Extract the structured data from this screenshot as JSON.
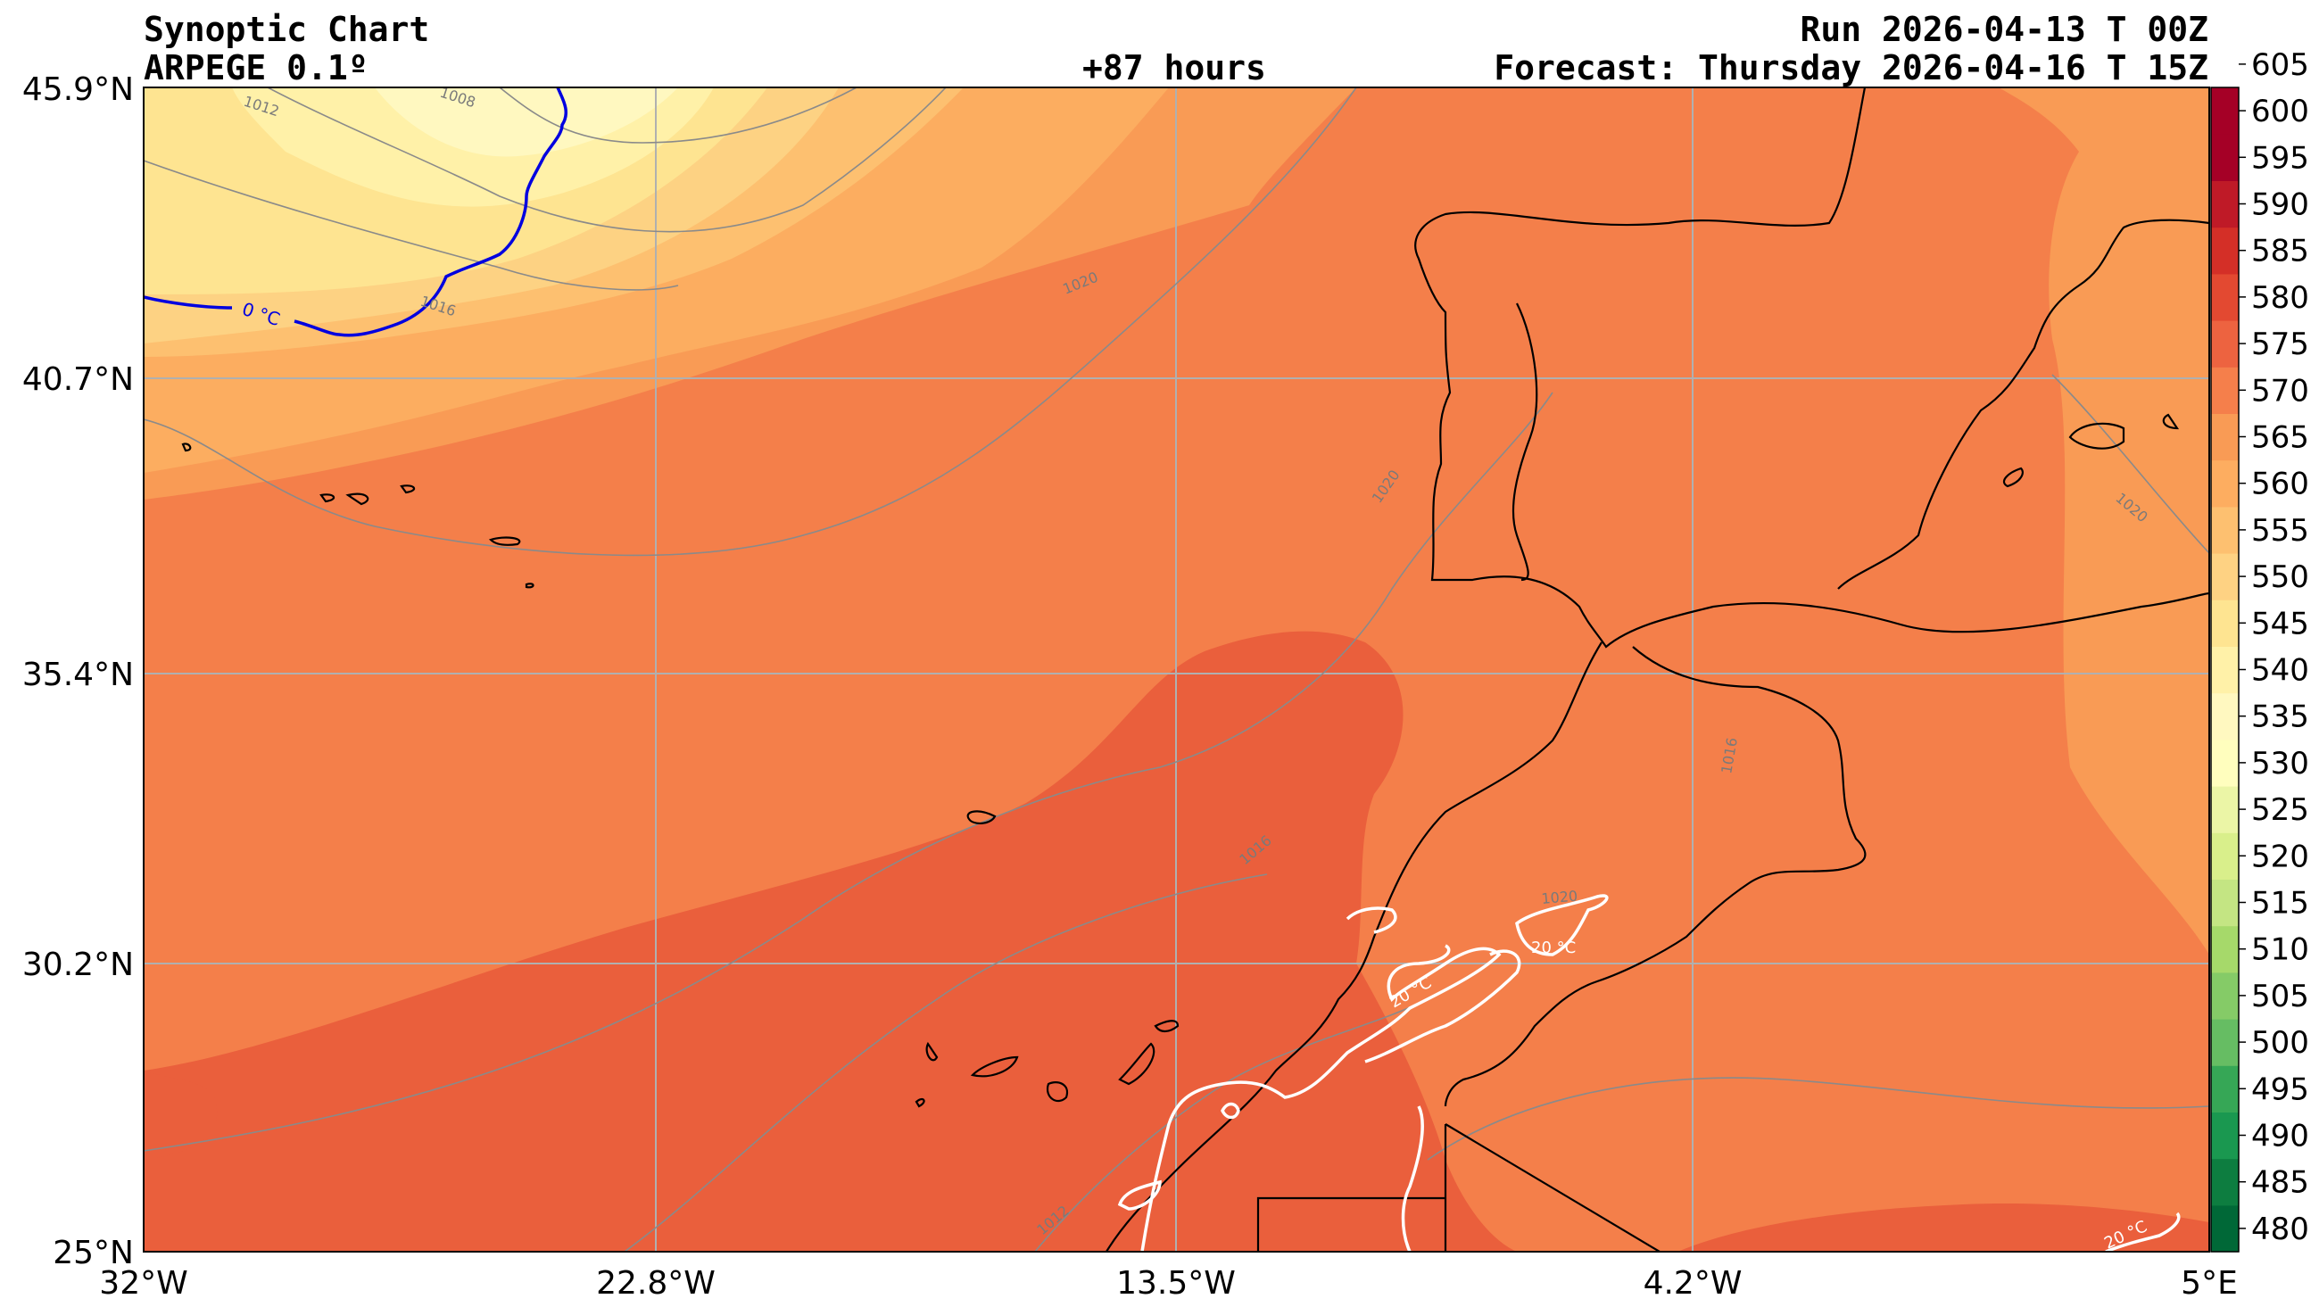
{
  "header": {
    "title": "Synoptic Chart",
    "model": "ARPEGE 0.1º",
    "lead": "+87 hours",
    "run": "Run 2026-04-13 T 00Z",
    "valid": "Forecast: Thursday 2026-04-16 T 15Z"
  },
  "map": {
    "lat_range": [
      25.0,
      45.9
    ],
    "lon_range": [
      -32.0,
      5.0
    ],
    "lat_ticks": [
      {
        "value": 45.9,
        "label": "45.9°N"
      },
      {
        "value": 40.7,
        "label": "40.7°N"
      },
      {
        "value": 35.4,
        "label": "35.4°N"
      },
      {
        "value": 30.2,
        "label": "30.2°N"
      },
      {
        "value": 25.0,
        "label": "25°N"
      }
    ],
    "lon_ticks": [
      {
        "value": -32.0,
        "label": "32°W"
      },
      {
        "value": -22.8,
        "label": "22.8°W"
      },
      {
        "value": -13.5,
        "label": "13.5°W"
      },
      {
        "value": -4.2,
        "label": "4.2°W"
      },
      {
        "value": 5.0,
        "label": "5°E"
      }
    ],
    "isobar_labels": [
      "1012",
      "1008",
      "1016",
      "1020",
      "1020",
      "1020",
      "1016",
      "1016",
      "1020",
      "1012"
    ],
    "isotherm_labels": [
      "0 °C",
      "20 °C",
      "20 °C",
      "20 °C"
    ]
  },
  "colorbar": {
    "labels": [
      "480",
      "485",
      "490",
      "495",
      "500",
      "505",
      "510",
      "515",
      "520",
      "525",
      "530",
      "535",
      "540",
      "545",
      "550",
      "555",
      "560",
      "565",
      "570",
      "575",
      "580",
      "585",
      "590",
      "595",
      "600",
      "605"
    ],
    "colors": [
      "#006837",
      "#0d7d40",
      "#1a9850",
      "#36a756",
      "#66bd63",
      "#85cb67",
      "#a6d96a",
      "#c4e583",
      "#d9ef8b",
      "#ebf5a6",
      "#fffebe",
      "#fff8c0",
      "#fff1a8",
      "#fee491",
      "#fed283",
      "#fdc070",
      "#fdad60",
      "#f99b55",
      "#f57f4b",
      "#ed6340",
      "#e34931",
      "#d42f27",
      "#bf1a27",
      "#a50026",
      "#a50026"
    ]
  }
}
